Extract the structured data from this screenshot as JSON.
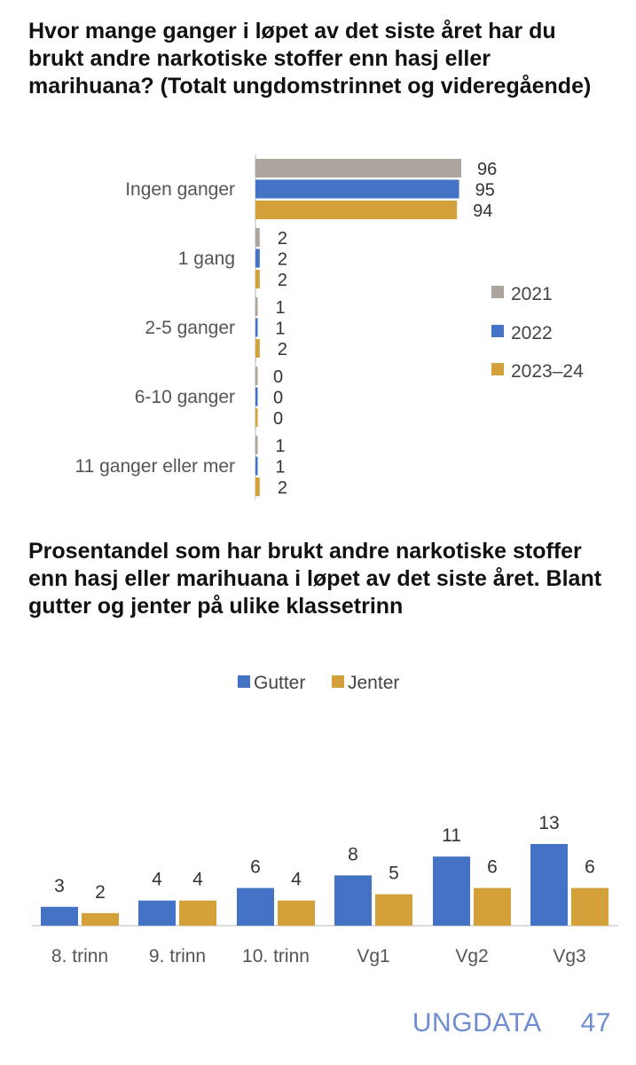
{
  "charts": [
    {
      "title": "Hvor mange ganger i løpet av det siste året har du brukt andre narkotiske stoffer enn hasj eller marihuana? (Totalt ungdomstrinnet og videregående)",
      "type": "bar",
      "orientation": "horizontal",
      "categories": [
        "Ingen ganger",
        "1 gang",
        "2-5 ganger",
        "6-10 ganger",
        "11 ganger eller mer"
      ],
      "series": [
        {
          "name": "2021",
          "color": "#aba59d",
          "values": [
            96,
            2,
            1,
            0,
            1
          ]
        },
        {
          "name": "2022",
          "color": "#4472c4",
          "values": [
            95,
            2,
            1,
            0,
            1
          ]
        },
        {
          "name": "2023–24",
          "color": "#d4a03a",
          "values": [
            94,
            2,
            2,
            0,
            2
          ]
        }
      ],
      "legend_position": "right",
      "grid": false
    },
    {
      "title": "Prosentandel som har brukt andre narkotiske stoffer enn hasj eller marihuana i løpet av det siste året. Blant gutter og jenter på ulike klassetrinn",
      "type": "bar",
      "orientation": "vertical",
      "categories": [
        "8. trinn",
        "9. trinn",
        "10. trinn",
        "Vg1",
        "Vg2",
        "Vg3"
      ],
      "series": [
        {
          "name": "Gutter",
          "color": "#4472c4",
          "values": [
            3,
            4,
            6,
            8,
            11,
            13
          ]
        },
        {
          "name": "Jenter",
          "color": "#d4a03a",
          "values": [
            2,
            4,
            4,
            5,
            6,
            6
          ]
        }
      ],
      "legend_position": "top",
      "grid": false
    }
  ],
  "footer": {
    "label": "UNGDATA",
    "page": "47"
  }
}
